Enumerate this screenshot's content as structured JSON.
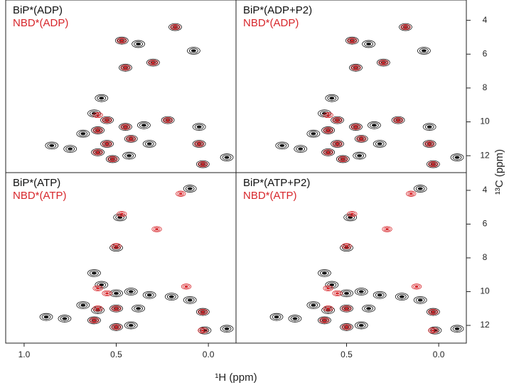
{
  "chart_data": [
    {
      "type": "scatter",
      "xlim": [
        1.1,
        -0.15
      ],
      "ylim": [
        2.8,
        13.0
      ],
      "series": [
        {
          "name": "BiP*(ADP)",
          "color": "#111111",
          "x": [
            0.18,
            0.47,
            0.38,
            0.08,
            0.45,
            0.3,
            0.58,
            0.62,
            0.55,
            0.45,
            0.35,
            0.22,
            0.05,
            0.68,
            0.6,
            0.55,
            0.42,
            0.32,
            0.05,
            0.75,
            0.6,
            0.52,
            0.43,
            0.03,
            0.85,
            -0.1
          ],
          "values": [
            4.4,
            5.2,
            5.4,
            5.8,
            6.8,
            6.5,
            8.6,
            9.5,
            9.9,
            10.3,
            10.2,
            9.9,
            10.3,
            10.7,
            10.5,
            11.3,
            11.0,
            11.3,
            11.3,
            11.6,
            11.8,
            12.2,
            12.0,
            12.5,
            11.4,
            12.1
          ]
        },
        {
          "name": "NBD*(ADP)",
          "color": "#d7262b",
          "x": [
            0.18,
            0.47,
            0.45,
            0.3,
            0.6,
            0.55,
            0.45,
            0.22,
            0.6,
            0.55,
            0.42,
            0.05,
            0.6,
            0.52,
            0.03
          ],
          "values": [
            4.4,
            5.2,
            6.8,
            6.5,
            9.6,
            9.9,
            10.3,
            9.9,
            10.5,
            11.3,
            11.0,
            11.3,
            11.8,
            12.2,
            12.5
          ]
        }
      ]
    },
    {
      "type": "scatter",
      "xlim": [
        1.1,
        -0.15
      ],
      "ylim": [
        2.8,
        13.0
      ],
      "yticks": [
        4,
        6,
        8,
        10,
        12
      ],
      "series": [
        {
          "name": "BiP*(ADP+P2)",
          "color": "#111111",
          "x": [
            0.18,
            0.47,
            0.38,
            0.08,
            0.45,
            0.3,
            0.58,
            0.62,
            0.55,
            0.45,
            0.35,
            0.22,
            0.05,
            0.68,
            0.6,
            0.55,
            0.42,
            0.32,
            0.05,
            0.75,
            0.6,
            0.52,
            0.43,
            0.03,
            0.85,
            -0.1
          ],
          "values": [
            4.4,
            5.2,
            5.4,
            5.8,
            6.8,
            6.5,
            8.6,
            9.5,
            9.9,
            10.3,
            10.2,
            9.9,
            10.3,
            10.7,
            10.5,
            11.3,
            11.0,
            11.3,
            11.3,
            11.6,
            11.8,
            12.2,
            12.0,
            12.5,
            11.4,
            12.1
          ]
        },
        {
          "name": "NBD*(ADP)",
          "color": "#d7262b",
          "x": [
            0.18,
            0.47,
            0.45,
            0.3,
            0.6,
            0.55,
            0.45,
            0.22,
            0.6,
            0.55,
            0.42,
            0.05,
            0.6,
            0.52,
            0.03
          ],
          "values": [
            4.4,
            5.2,
            6.8,
            6.5,
            9.6,
            9.9,
            10.3,
            9.9,
            10.5,
            11.3,
            11.0,
            11.3,
            11.8,
            12.2,
            12.5
          ]
        }
      ]
    },
    {
      "type": "scatter",
      "xlim": [
        1.1,
        -0.15
      ],
      "ylim": [
        2.95,
        13.05
      ],
      "xticks": [
        {
          "value": 1,
          "label": "1.0"
        },
        0.5,
        {
          "value": 0,
          "label": "0.0"
        }
      ],
      "series": [
        {
          "name": "BiP*(ATP)",
          "color": "#111111",
          "x": [
            0.1,
            0.48,
            0.5,
            0.62,
            0.58,
            0.5,
            0.42,
            0.32,
            0.2,
            0.1,
            0.68,
            0.6,
            0.5,
            0.38,
            0.03,
            0.78,
            0.62,
            0.5,
            0.42,
            0.02,
            0.88,
            -0.1
          ],
          "values": [
            3.9,
            5.6,
            7.4,
            8.9,
            9.6,
            10.1,
            10.0,
            10.2,
            10.3,
            10.5,
            10.8,
            11.1,
            11.0,
            11.0,
            11.2,
            11.6,
            11.7,
            12.1,
            12.0,
            12.3,
            11.5,
            12.2
          ]
        },
        {
          "name": "NBD*(ATP)",
          "color": "#d7262b",
          "x": [
            0.15,
            0.47,
            0.28,
            0.5,
            0.6,
            0.55,
            0.12,
            0.6,
            0.5,
            0.03,
            0.62,
            0.5,
            0.03
          ],
          "values": [
            4.2,
            5.4,
            6.3,
            7.3,
            9.8,
            10.1,
            9.7,
            11.0,
            11.0,
            11.2,
            11.7,
            12.1,
            12.3
          ]
        }
      ]
    },
    {
      "type": "scatter",
      "xlim": [
        1.1,
        -0.15
      ],
      "ylim": [
        2.95,
        13.05
      ],
      "xticks": [
        0.5,
        {
          "value": 0,
          "label": "0.0"
        }
      ],
      "yticks": [
        4,
        6,
        8,
        10,
        12
      ],
      "series": [
        {
          "name": "BiP*(ATP+P2)",
          "color": "#111111",
          "x": [
            0.1,
            0.48,
            0.5,
            0.62,
            0.58,
            0.5,
            0.42,
            0.32,
            0.2,
            0.1,
            0.68,
            0.6,
            0.5,
            0.38,
            0.03,
            0.78,
            0.62,
            0.5,
            0.42,
            0.02,
            0.88,
            -0.1
          ],
          "values": [
            3.9,
            5.6,
            7.4,
            8.9,
            9.6,
            10.1,
            10.0,
            10.2,
            10.3,
            10.5,
            10.8,
            11.1,
            11.0,
            11.0,
            11.2,
            11.6,
            11.7,
            12.1,
            12.0,
            12.3,
            11.5,
            12.2
          ]
        },
        {
          "name": "NBD*(ATP)",
          "color": "#d7262b",
          "x": [
            0.15,
            0.47,
            0.28,
            0.5,
            0.6,
            0.55,
            0.12,
            0.6,
            0.5,
            0.03,
            0.62,
            0.5,
            0.03
          ],
          "values": [
            4.2,
            5.4,
            6.3,
            7.3,
            9.8,
            10.1,
            9.7,
            11.0,
            11.0,
            11.2,
            11.7,
            12.1,
            12.3
          ]
        }
      ]
    }
  ],
  "xlabel": "¹H (ppm)",
  "ylabel": "¹³C (ppm)"
}
